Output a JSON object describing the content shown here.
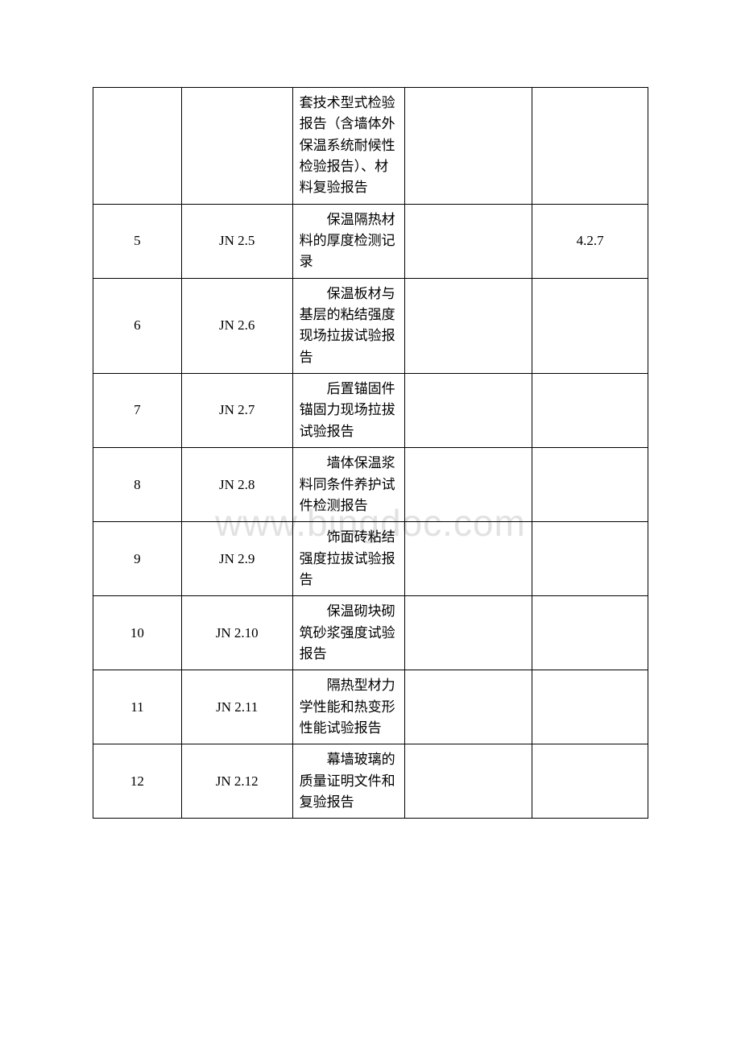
{
  "watermark": "www.bingdoc.com",
  "table": {
    "columns_count": 5,
    "border_color": "#000000",
    "font_family": "SimSun",
    "rows": [
      {
        "c1": "",
        "c2": "",
        "c3": "套技术型式检验报告（含墙体外保温系统耐候性检验报告）、材料复验报告",
        "c3_indent": false,
        "c4": "",
        "c5": ""
      },
      {
        "c1": "5",
        "c2": "JN 2.5",
        "c3": "保温隔热材料的厚度检测记录",
        "c3_indent": true,
        "c4": "",
        "c5": "4.2.7"
      },
      {
        "c1": "6",
        "c2": "JN 2.6",
        "c3": "保温板材与基层的粘结强度现场拉拔试验报告",
        "c3_indent": true,
        "c4": "",
        "c5": ""
      },
      {
        "c1": "7",
        "c2": "JN 2.7",
        "c3": "后置锚固件锚固力现场拉拔试验报告",
        "c3_indent": true,
        "c4": "",
        "c5": ""
      },
      {
        "c1": "8",
        "c2": "JN 2.8",
        "c3": "墙体保温浆料同条件养护试件检测报告",
        "c3_indent": true,
        "c4": "",
        "c5": ""
      },
      {
        "c1": "9",
        "c2": "JN 2.9",
        "c3": "饰面砖粘结强度拉拔试验报告",
        "c3_indent": true,
        "c4": "",
        "c5": ""
      },
      {
        "c1": "10",
        "c2": "JN 2.10",
        "c3": "保温砌块砌筑砂浆强度试验报告",
        "c3_indent": true,
        "c4": "",
        "c5": ""
      },
      {
        "c1": "11",
        "c2": "JN 2.11",
        "c3": "隔热型材力学性能和热变形性能试验报告",
        "c3_indent": true,
        "c4": "",
        "c5": ""
      },
      {
        "c1": "12",
        "c2": "JN 2.12",
        "c3": "幕墙玻璃的质量证明文件和复验报告",
        "c3_indent": true,
        "c4": "",
        "c5": ""
      }
    ]
  }
}
